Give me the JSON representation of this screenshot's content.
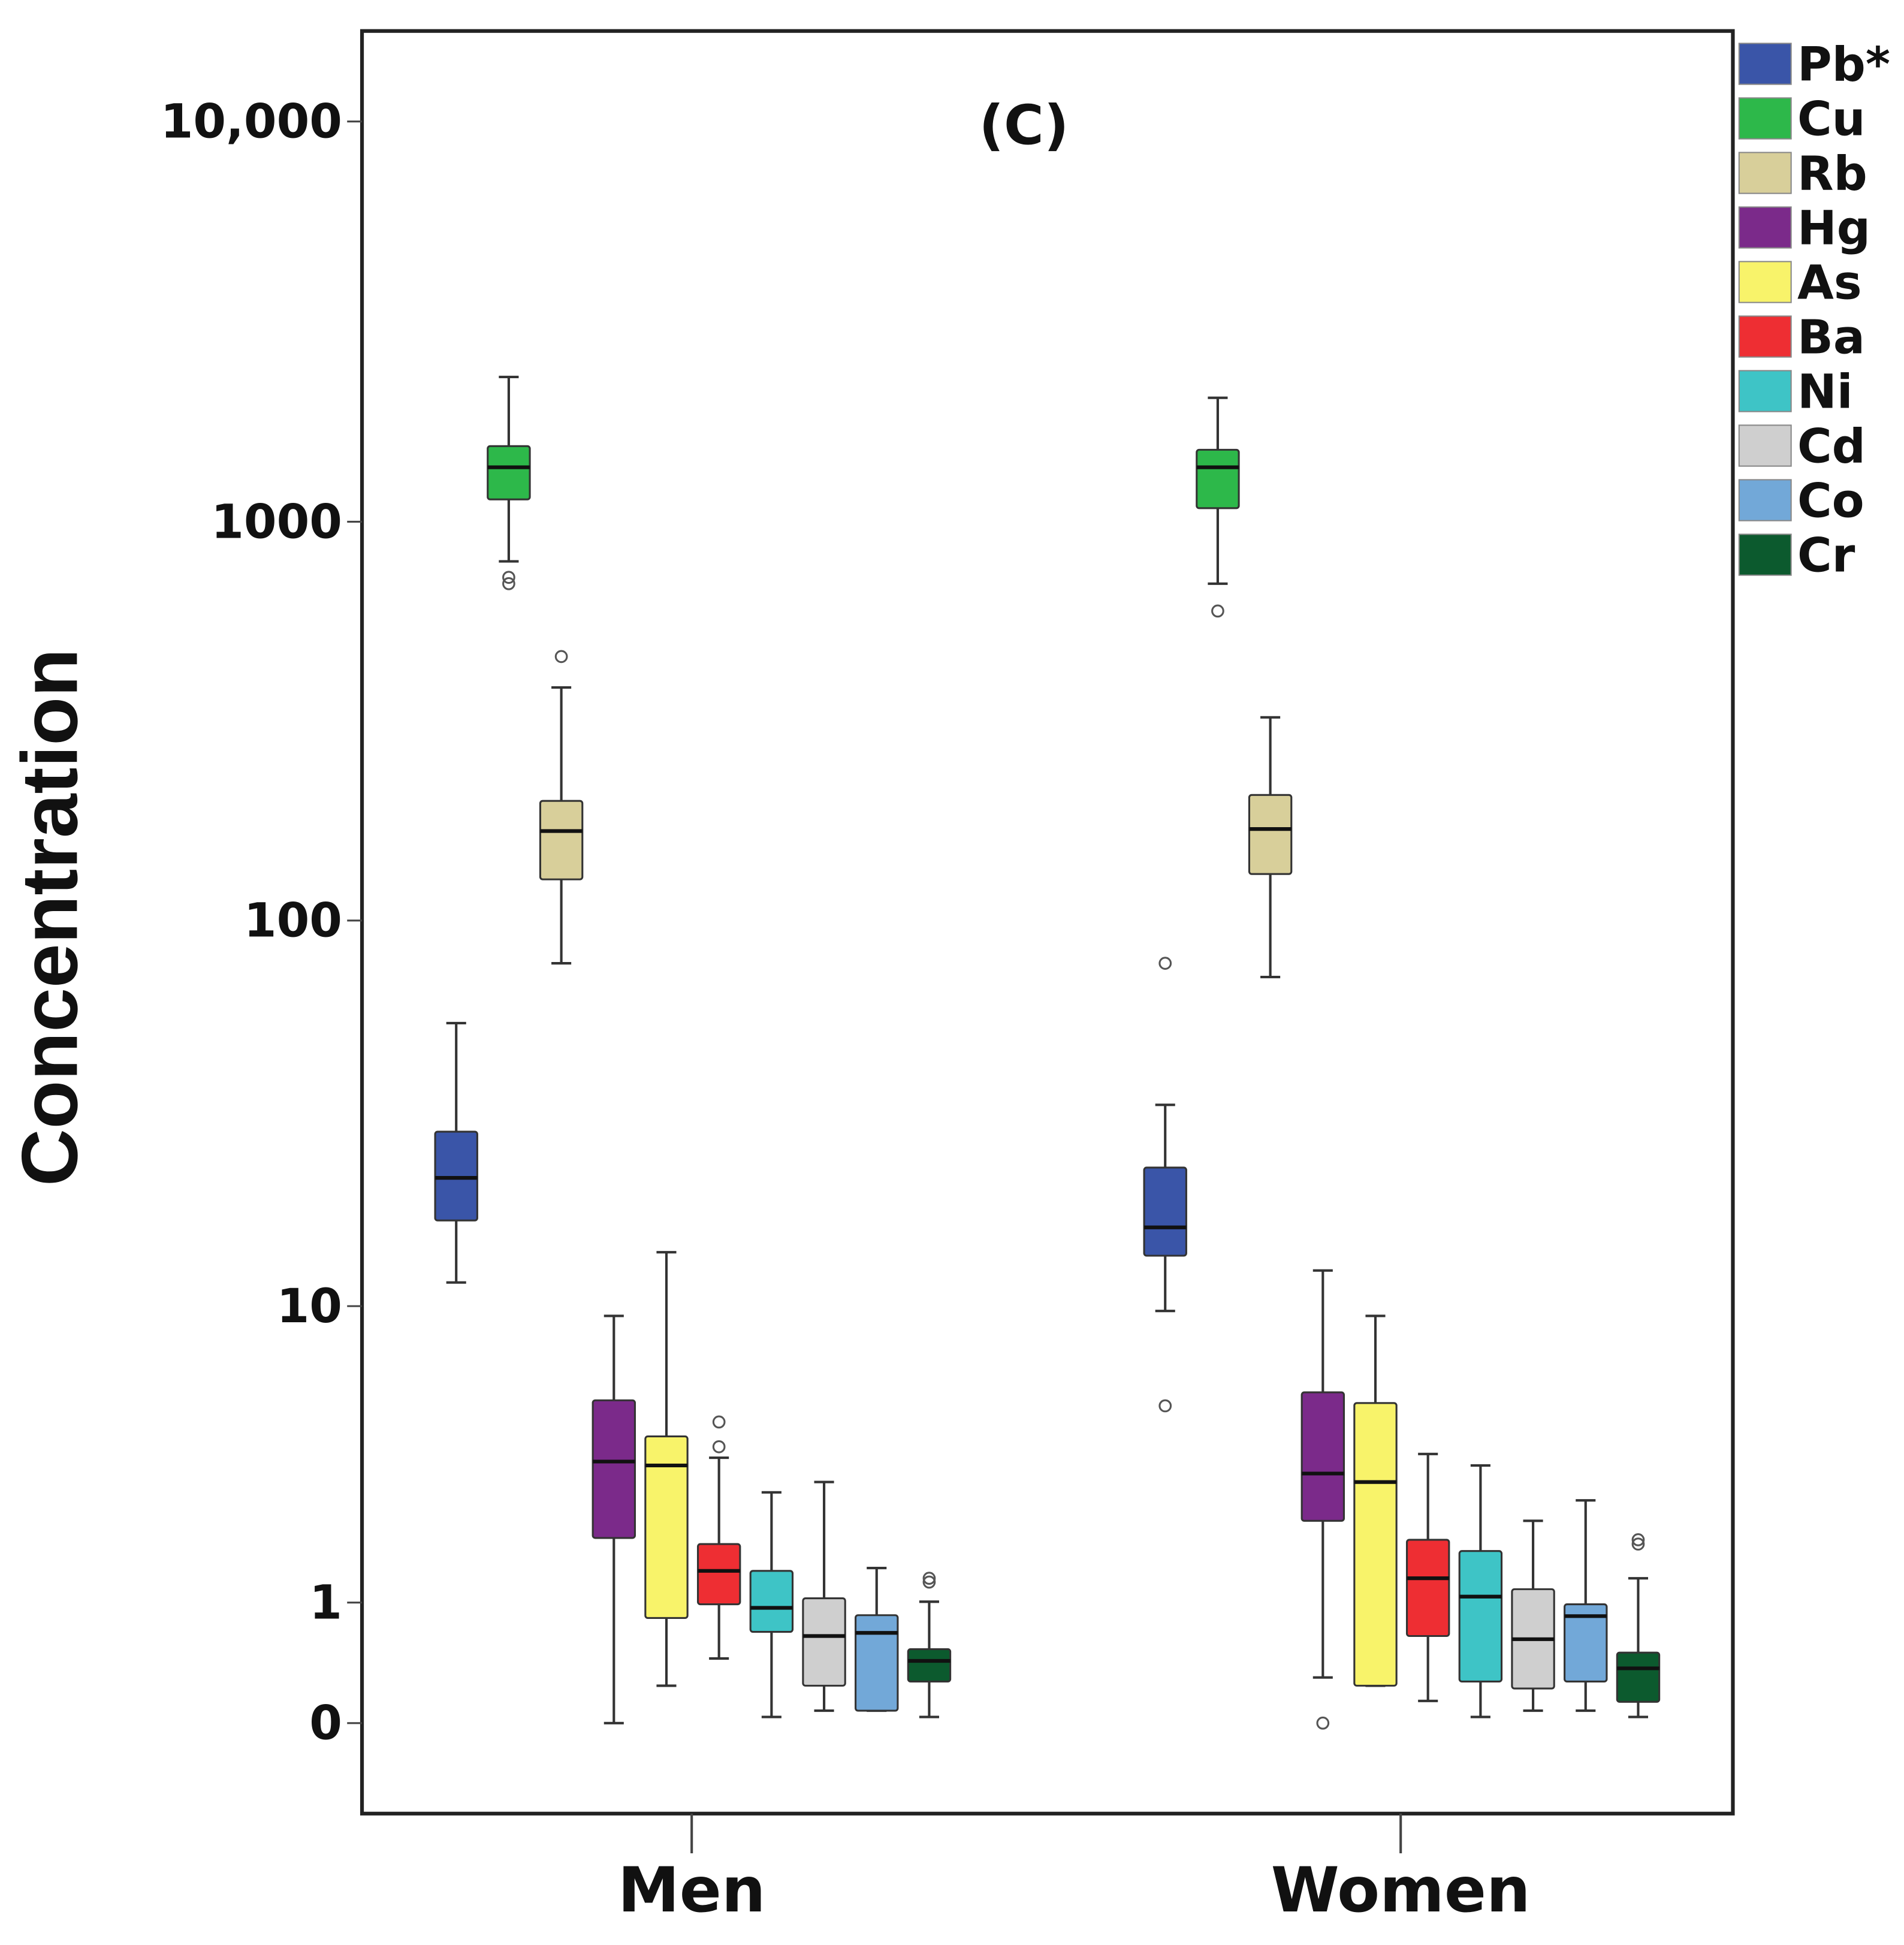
{
  "chart_data": {
    "type": "boxplot",
    "title": "(C)",
    "xlabel": "",
    "ylabel": "Concentration",
    "y_scale": "log(x+1)",
    "ylim": [
      0,
      10000
    ],
    "y_ticks": [
      0,
      1,
      10,
      100,
      1000,
      10000
    ],
    "y_tick_labels": [
      "0",
      "1",
      "10",
      "100",
      "1000",
      "10,000"
    ],
    "categories": [
      "Men",
      "Women"
    ],
    "legend_position": "right-outside-top",
    "series": [
      {
        "name": "Pb*",
        "color": "#3a55a8",
        "boxes": [
          {
            "whisker_low": 11.6,
            "q1": 17,
            "median": 22,
            "q3": 29,
            "whisker_high": 55,
            "outliers": []
          },
          {
            "whisker_low": 9.7,
            "q1": 13.7,
            "median": 16.3,
            "q3": 23.4,
            "whisker_high": 34,
            "outliers": [
              78,
              5.2
            ]
          }
        ]
      },
      {
        "name": "Cu",
        "color": "#2db84a",
        "boxes": [
          {
            "whisker_low": 796,
            "q1": 1137,
            "median": 1368,
            "q3": 1545,
            "whisker_high": 2300,
            "outliers": [
              726,
              700
            ]
          },
          {
            "whisker_low": 700,
            "q1": 1081,
            "median": 1368,
            "q3": 1513,
            "whisker_high": 2040,
            "outliers": [
              598
            ]
          }
        ]
      },
      {
        "name": "Rb",
        "color": "#d8cf9a",
        "boxes": [
          {
            "whisker_low": 78,
            "q1": 127,
            "median": 168,
            "q3": 200,
            "whisker_high": 385,
            "outliers": [
              460
            ]
          },
          {
            "whisker_low": 72,
            "q1": 131,
            "median": 170,
            "q3": 207,
            "whisker_high": 324,
            "outliers": []
          }
        ]
      },
      {
        "name": "Hg",
        "color": "#7b2a8a",
        "boxes": [
          {
            "whisker_low": 0,
            "q1": 1.9,
            "median": 3.5,
            "q3": 5.4,
            "whisker_high": 9.4,
            "outliers": []
          },
          {
            "whisker_low": 0.3,
            "q1": 2.2,
            "median": 3.2,
            "q3": 5.7,
            "whisker_high": 12.5,
            "outliers": [
              0
            ]
          }
        ]
      },
      {
        "name": "As",
        "color": "#f8f36a",
        "boxes": [
          {
            "whisker_low": 0.24,
            "q1": 0.83,
            "median": 3.4,
            "q3": 4.2,
            "whisker_high": 14,
            "outliers": []
          },
          {
            "whisker_low": 0.24,
            "q1": 0.24,
            "median": 3.0,
            "q3": 5.3,
            "whisker_high": 9.4,
            "outliers": []
          }
        ]
      },
      {
        "name": "Ba",
        "color": "#ee2e33",
        "boxes": [
          {
            "whisker_low": 0.45,
            "q1": 0.98,
            "median": 1.4,
            "q3": 1.8,
            "whisker_high": 3.6,
            "outliers": [
              4.65,
              3.9
            ]
          },
          {
            "whisker_low": 0.136,
            "q1": 0.65,
            "median": 1.3,
            "q3": 1.87,
            "whisker_high": 3.7,
            "outliers": []
          }
        ]
      },
      {
        "name": "Ni",
        "color": "#3ec4c6",
        "boxes": [
          {
            "whisker_low": 0.036,
            "q1": 0.69,
            "median": 0.94,
            "q3": 1.4,
            "whisker_high": 2.77,
            "outliers": []
          },
          {
            "whisker_low": 0.036,
            "q1": 0.27,
            "median": 1.07,
            "q3": 1.69,
            "whisker_high": 3.4,
            "outliers": []
          }
        ]
      },
      {
        "name": "Cd",
        "color": "#cfcfcf",
        "boxes": [
          {
            "whisker_low": 0.074,
            "q1": 0.24,
            "median": 0.65,
            "q3": 1.05,
            "whisker_high": 3.0,
            "outliers": []
          },
          {
            "whisker_low": 0.074,
            "q1": 0.22,
            "median": 0.62,
            "q3": 1.16,
            "whisker_high": 2.2,
            "outliers": []
          }
        ]
      },
      {
        "name": "Co",
        "color": "#72a8d8",
        "boxes": [
          {
            "whisker_low": 0.074,
            "q1": 0.074,
            "median": 0.68,
            "q3": 0.86,
            "whisker_high": 1.44,
            "outliers": []
          },
          {
            "whisker_low": 0.074,
            "q1": 0.27,
            "median": 0.85,
            "q3": 0.98,
            "whisker_high": 2.6,
            "outliers": []
          }
        ]
      },
      {
        "name": "Cr",
        "color": "#0c5a2e",
        "boxes": [
          {
            "whisker_low": 0.036,
            "q1": 0.27,
            "median": 0.43,
            "q3": 0.53,
            "whisker_high": 1.01,
            "outliers": [
              1.3,
              1.25
            ]
          },
          {
            "whisker_low": 0.036,
            "q1": 0.13,
            "median": 0.37,
            "q3": 0.5,
            "whisker_high": 1.3,
            "outliers": [
              1.87,
              1.8
            ]
          }
        ]
      }
    ]
  }
}
